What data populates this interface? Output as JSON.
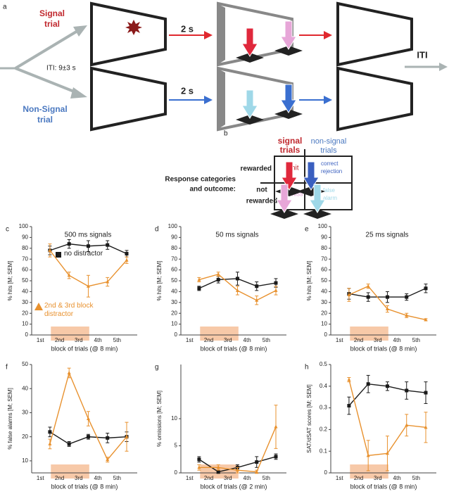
{
  "diagram": {
    "panel_label": "a",
    "signal_label": [
      "Signal",
      "trial"
    ],
    "nonsignal_label": [
      "Non-Signal",
      "trial"
    ],
    "iti_range": "ITI: 9±3 s",
    "delay_signal": "2 s",
    "delay_nonsignal": "2 s",
    "iti": "ITI"
  },
  "response_table": {
    "panel_label": "b",
    "caption": [
      "Response categories",
      "and outcome:"
    ],
    "columns": [
      [
        "signal",
        "trials"
      ],
      [
        "non-signal",
        "trials"
      ]
    ],
    "rows": [
      [
        "rewarded"
      ],
      [
        "not",
        "rewarded"
      ]
    ],
    "cells": [
      [
        [
          "hit"
        ],
        [
          "correct",
          "rejection"
        ]
      ],
      [
        [
          "miss"
        ],
        [
          "false",
          "alarm"
        ]
      ]
    ]
  },
  "chart_data": [
    {
      "type": "line",
      "panel_label": "c",
      "title": "500 ms signals",
      "xlabel": "block of trials (@ 8 min)",
      "ylabel": "% hits [M; SEM]",
      "categories": [
        "1st",
        "2nd",
        "3rd",
        "4th",
        "5th"
      ],
      "shaded_categories": [
        1,
        2
      ],
      "ylim": [
        0,
        100
      ],
      "yticks": [
        0,
        10,
        20,
        30,
        40,
        50,
        60,
        70,
        80,
        90,
        100
      ],
      "series": [
        {
          "name": "no distractor",
          "color": "#1a1a1a",
          "marker": "square",
          "values": [
            78,
            84,
            82,
            83,
            75
          ],
          "errors": [
            4,
            4,
            5,
            4,
            3
          ]
        },
        {
          "name": "2nd & 3rd block distractor",
          "color": "#e8912e",
          "marker": "triangle",
          "values": [
            78,
            55,
            45,
            49,
            69
          ],
          "errors": [
            6,
            3,
            10,
            4,
            3
          ]
        }
      ]
    },
    {
      "type": "line",
      "panel_label": "d",
      "title": "50 ms signals",
      "xlabel": "block of trials (@ 8 min)",
      "ylabel": "% hits [M; SEM]",
      "categories": [
        "1st",
        "2nd",
        "3rd",
        "4th",
        "5th"
      ],
      "shaded_categories": [
        1,
        2
      ],
      "ylim": [
        0,
        100
      ],
      "yticks": [
        0,
        10,
        20,
        30,
        40,
        50,
        60,
        70,
        80,
        90,
        100
      ],
      "series": [
        {
          "color": "#1a1a1a",
          "marker": "square",
          "values": [
            43,
            51,
            52,
            45,
            48
          ],
          "errors": [
            2,
            3,
            6,
            4,
            4
          ]
        },
        {
          "color": "#e8912e",
          "marker": "triangle",
          "values": [
            51,
            56,
            41,
            32,
            41
          ],
          "errors": [
            2,
            2,
            4,
            4,
            4
          ]
        }
      ]
    },
    {
      "type": "line",
      "panel_label": "e",
      "title": "25 ms signals",
      "xlabel": "block of trials (@ 8 min)",
      "ylabel": "% hits [M; SEM]",
      "categories": [
        "1st",
        "2nd",
        "3rd",
        "4th",
        "5th"
      ],
      "shaded_categories": [
        1,
        2
      ],
      "ylim": [
        0,
        100
      ],
      "yticks": [
        0,
        10,
        20,
        30,
        40,
        50,
        60,
        70,
        80,
        90,
        100
      ],
      "series": [
        {
          "color": "#1a1a1a",
          "marker": "square",
          "values": [
            38,
            35,
            35,
            35,
            43
          ],
          "errors": [
            5,
            4,
            5,
            3,
            4
          ]
        },
        {
          "color": "#e8912e",
          "marker": "triangle",
          "values": [
            37,
            45,
            24,
            18,
            14
          ],
          "errors": [
            6,
            2,
            3,
            2,
            1
          ]
        }
      ]
    },
    {
      "type": "line",
      "panel_label": "f",
      "xlabel": "block of trials (@ 8 min)",
      "ylabel": "% false alarms [M; SEM]",
      "categories": [
        "1st",
        "2nd",
        "3rd",
        "4th",
        "5th"
      ],
      "shaded_categories": [
        1,
        2
      ],
      "ylim": [
        5,
        50
      ],
      "yticks": [
        10,
        20,
        30,
        40,
        50
      ],
      "series": [
        {
          "color": "#1a1a1a",
          "marker": "square",
          "values": [
            22,
            17,
            20,
            19.5,
            20
          ],
          "errors": [
            2,
            1,
            1,
            2,
            2
          ]
        },
        {
          "color": "#e8912e",
          "marker": "triangle",
          "values": [
            17,
            46.5,
            27.5,
            10.5,
            20
          ],
          "errors": [
            2,
            2,
            3,
            1,
            6
          ]
        }
      ]
    },
    {
      "type": "line",
      "panel_label": "g",
      "xlabel": "block of trials (@ 2 min)",
      "ylabel": "% omissions [M; SEM]",
      "categories": [
        "1st",
        "2nd",
        "3rd",
        "4th",
        "5th"
      ],
      "shaded_categories": [
        1,
        2
      ],
      "ylim": [
        0,
        20
      ],
      "yticks": [
        0,
        5,
        10
      ],
      "series": [
        {
          "color": "#1a1a1a",
          "marker": "square",
          "values": [
            2.5,
            0.2,
            1,
            2,
            3
          ],
          "errors": [
            0.5,
            0.3,
            0.5,
            1,
            0.5
          ]
        },
        {
          "color": "#e8912e",
          "marker": "triangle",
          "values": [
            1,
            1,
            0.5,
            0.2,
            8.5
          ],
          "errors": [
            0.5,
            0.5,
            0.5,
            0.3,
            4
          ]
        }
      ]
    },
    {
      "type": "line",
      "panel_label": "h",
      "xlabel": "block of trials (@ 8 min)",
      "ylabel": "SAT/dSAT scores [M; SEM]",
      "categories": [
        "1st",
        "2nd",
        "3rd",
        "4th",
        "5th"
      ],
      "shaded_categories": [
        1,
        2
      ],
      "ylim": [
        0,
        0.5
      ],
      "yticks": [
        0,
        0.1,
        0.2,
        0.3,
        0.4,
        0.5
      ],
      "series": [
        {
          "color": "#1a1a1a",
          "marker": "square",
          "values": [
            0.31,
            0.41,
            0.4,
            0.38,
            0.37
          ],
          "errors": [
            0.04,
            0.04,
            0.02,
            0.04,
            0.05
          ]
        },
        {
          "color": "#e8912e",
          "marker": "triangle",
          "values": [
            0.43,
            0.08,
            0.09,
            0.22,
            0.21
          ],
          "errors": [
            0.01,
            0.07,
            0.08,
            0.05,
            0.07
          ]
        }
      ]
    }
  ]
}
